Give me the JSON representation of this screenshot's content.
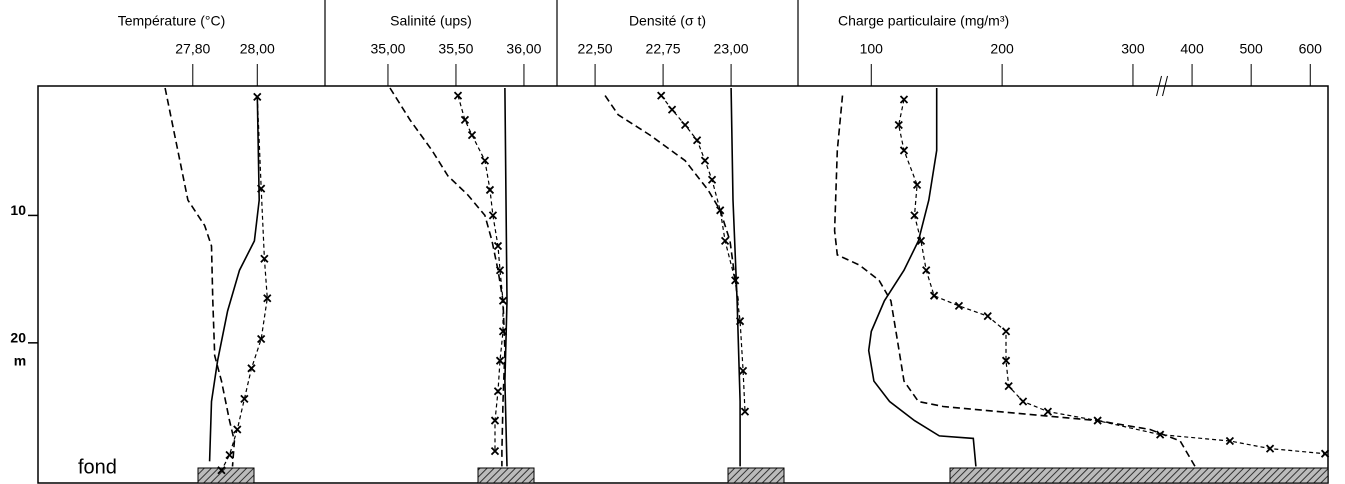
{
  "chart_data": [
    {
      "type": "line",
      "title": "Température (°C)",
      "xlim": [
        27.32,
        28.21
      ],
      "xticks": [
        {
          "value": 27.8,
          "label": "27,80"
        },
        {
          "value": 28.0,
          "label": "28,00"
        }
      ],
      "ylim": [
        0,
        31
      ],
      "yticks": [
        10,
        20
      ],
      "ylabel": "m",
      "y_reversed": true,
      "annotation": "fond",
      "series": [
        {
          "style": "dashed",
          "color": "#000000",
          "y": [
            0,
            8.8,
            10.8,
            12.4,
            16.7,
            21,
            23,
            26.1,
            27.7,
            29.7
          ],
          "values": [
            27.714,
            27.785,
            27.837,
            27.858,
            27.862,
            27.868,
            27.889,
            27.914,
            27.929,
            27.923
          ]
        },
        {
          "style": "solid",
          "color": "#000000",
          "y": [
            0.6,
            8.8,
            12,
            14.3,
            17.5,
            21.4,
            24.6,
            29.3
          ],
          "values": [
            28.0,
            28.006,
            27.991,
            27.945,
            27.908,
            27.877,
            27.858,
            27.852
          ]
        },
        {
          "style": "cross",
          "color": "#000000",
          "y": [
            0.7,
            7.9,
            13.4,
            16.5,
            19.7,
            22.0,
            24.4,
            26.8,
            28.8,
            30
          ],
          "values": [
            28.0,
            28.012,
            28.022,
            28.031,
            28.012,
            27.982,
            27.96,
            27.938,
            27.914,
            27.889
          ]
        }
      ]
    },
    {
      "type": "line",
      "title": "Salinité (ups)",
      "xlim": [
        34.537,
        36.243
      ],
      "xticks": [
        {
          "value": 35.0,
          "label": "35,00"
        },
        {
          "value": 35.5,
          "label": "35,50"
        },
        {
          "value": 36.0,
          "label": "36,00"
        }
      ],
      "ylim": [
        0,
        31
      ],
      "y_reversed": true,
      "series": [
        {
          "style": "dashed",
          "color": "#000000",
          "y": [
            0,
            2.5,
            4.9,
            6.9,
            8.4,
            10,
            12,
            14.3,
            16.7,
            20.6,
            24.6,
            28.5,
            29.7
          ],
          "values": [
            35.015,
            35.162,
            35.324,
            35.441,
            35.588,
            35.713,
            35.765,
            35.809,
            35.846,
            35.86,
            35.846,
            35.838,
            35.838
          ]
        },
        {
          "style": "solid",
          "color": "#000000",
          "y": [
            0,
            8.8,
            16.7,
            23,
            29.7
          ],
          "values": [
            35.86,
            35.868,
            35.875,
            35.86,
            35.875
          ]
        },
        {
          "style": "cross",
          "color": "#000000",
          "y": [
            0.6,
            2.5,
            3.7,
            5.7,
            8.0,
            10,
            12.4,
            14.3,
            16.7,
            19.1,
            21.4,
            23.8,
            26.1,
            28.5
          ],
          "values": [
            35.515,
            35.566,
            35.618,
            35.713,
            35.75,
            35.772,
            35.809,
            35.824,
            35.846,
            35.846,
            35.824,
            35.809,
            35.787,
            35.787
          ]
        }
      ]
    },
    {
      "type": "line",
      "title": "Densité (σ t)",
      "xlim": [
        22.36,
        23.246
      ],
      "xticks": [
        {
          "value": 22.5,
          "label": "22,50"
        },
        {
          "value": 22.75,
          "label": "22,75"
        },
        {
          "value": 23.0,
          "label": "23,00"
        }
      ],
      "ylim": [
        0,
        31
      ],
      "y_reversed": true,
      "series": [
        {
          "style": "dashed",
          "color": "#000000",
          "y": [
            0.6,
            2.1,
            3.7,
            5.7,
            8.0,
            9.6,
            12,
            15.1,
            16.7
          ],
          "values": [
            22.537,
            22.585,
            22.702,
            22.831,
            22.915,
            22.96,
            22.996,
            23.015,
            23.026
          ]
        },
        {
          "style": "solid",
          "color": "#000000",
          "y": [
            0,
            8.8,
            16.7,
            24.6,
            29.7
          ],
          "values": [
            23.0,
            23.007,
            23.022,
            23.033,
            23.033
          ]
        },
        {
          "style": "cross",
          "color": "#000000",
          "y": [
            0.6,
            1.7,
            2.9,
            4.1,
            5.7,
            7.2,
            9.6,
            12,
            15.1,
            18.3,
            22.2,
            25.4
          ],
          "values": [
            22.743,
            22.783,
            22.831,
            22.875,
            22.904,
            22.93,
            22.96,
            22.978,
            23.015,
            23.033,
            23.044,
            23.051
          ]
        }
      ]
    },
    {
      "type": "line",
      "title": "Charge particulaire (mg/m³)",
      "xlim": [
        44,
        630
      ],
      "xticks": [
        100,
        200,
        300,
        400,
        500,
        600
      ],
      "axis_break": [
        300,
        400
      ],
      "ylim": [
        0,
        31
      ],
      "y_reversed": true,
      "series": [
        {
          "style": "dashed",
          "color": "#000000",
          "y": [
            0.6,
            4.9,
            11.2,
            13.1,
            13.9,
            15.1,
            16.7,
            19.8,
            23,
            24.6,
            25,
            25.4,
            26.1,
            26.8,
            27.7,
            29.7
          ],
          "values": [
            78,
            74,
            72,
            74,
            91,
            106,
            115,
            120,
            125,
            136,
            155,
            197,
            273,
            329,
            380,
            405
          ]
        },
        {
          "style": "solid",
          "color": "#000000",
          "y": [
            0,
            4.9,
            8.8,
            12,
            14.3,
            16.7,
            19.1,
            20.6,
            23,
            24.6,
            26.1,
            27.3,
            27.5,
            29.7
          ],
          "values": [
            150,
            150,
            144,
            136,
            125,
            110,
            100,
            98,
            102,
            114,
            133,
            152,
            178,
            180
          ]
        },
        {
          "style": "cross",
          "color": "#000000",
          "y": [
            0.9,
            2.9,
            4.9,
            7.6,
            10,
            12,
            14.3,
            16.3,
            17.1,
            17.9,
            19.1,
            21.4,
            23.4,
            24.6,
            25.4,
            26.1,
            27.2,
            27.7,
            28.3,
            28.7
          ],
          "values": [
            125,
            121,
            125,
            135,
            133,
            138,
            142,
            148,
            167,
            189,
            203,
            203,
            205,
            216,
            235,
            273,
            346,
            464,
            532,
            625
          ]
        }
      ]
    }
  ]
}
